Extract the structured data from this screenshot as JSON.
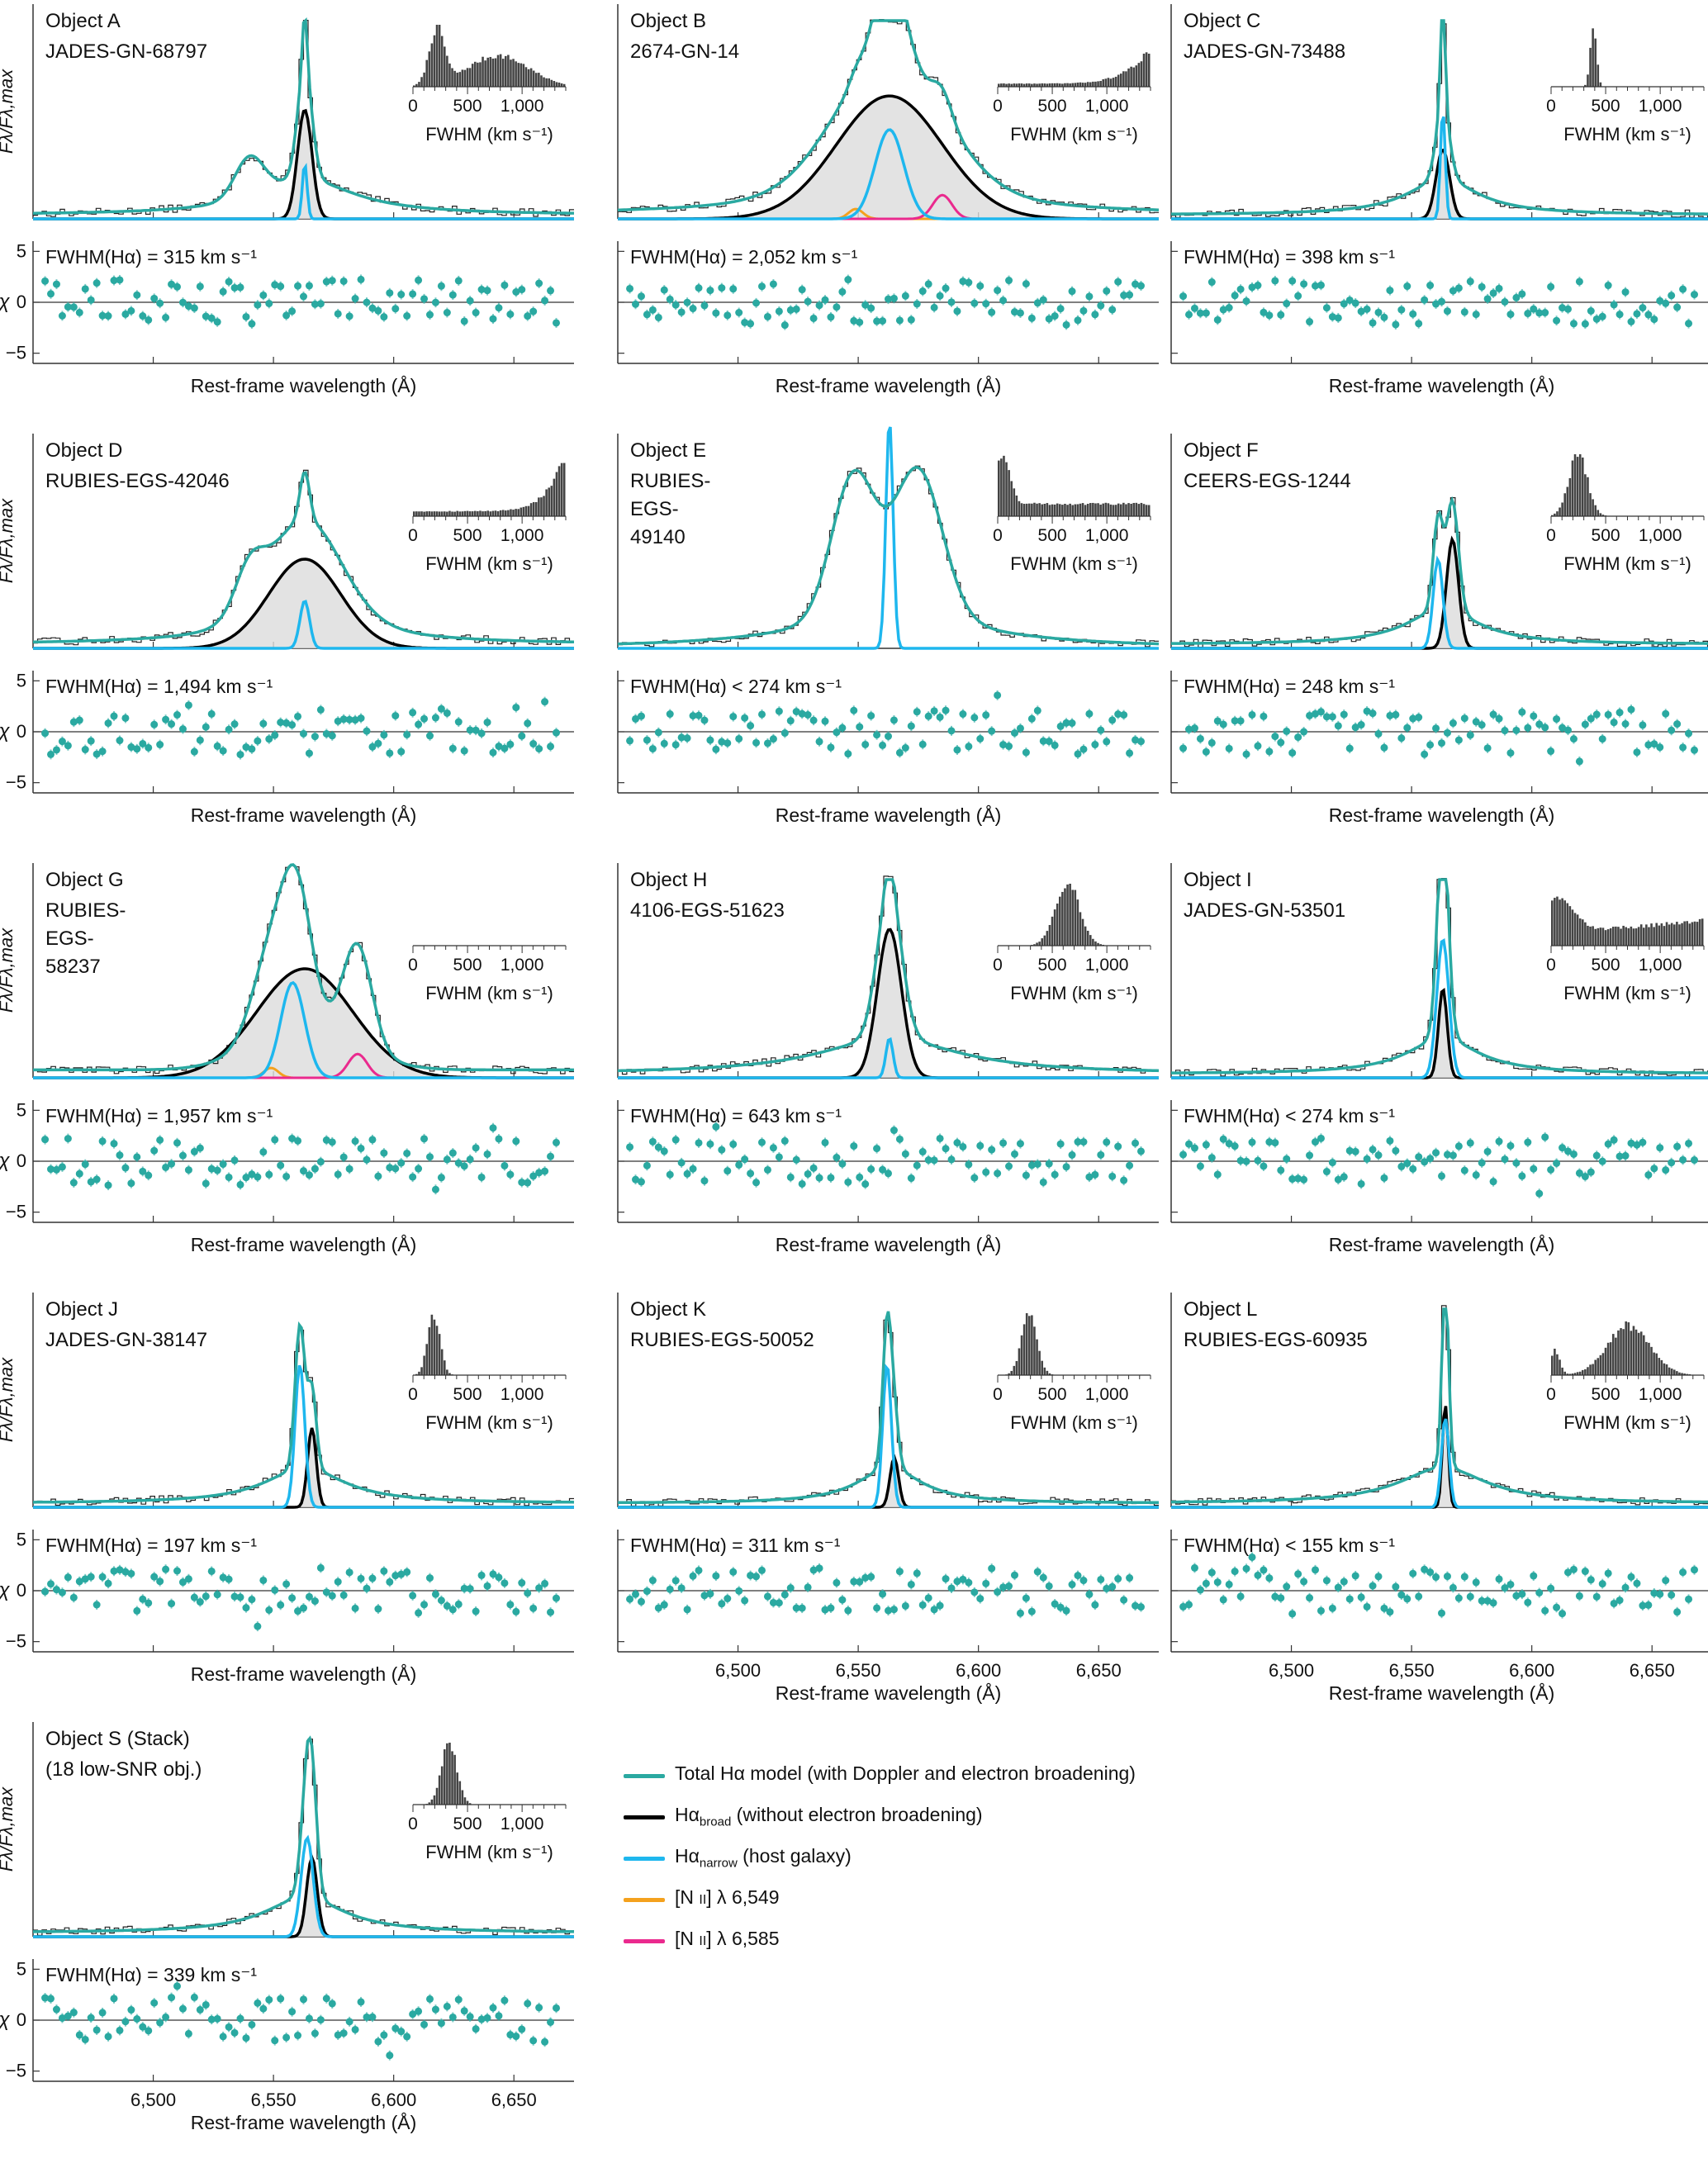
{
  "chart_data": {
    "type": "line",
    "title": "",
    "xlabel": "Rest-frame wavelength (Å)",
    "ylabel": "Fλ/Fλ,max",
    "residual_ylabel": "χ",
    "inset_xlabel": "FWHM (km s⁻¹)",
    "xlim": [
      6450,
      6675
    ],
    "residual_ylim": [
      -6,
      6
    ],
    "x_ticks": [
      6500,
      6550,
      6600,
      6650
    ],
    "x_tick_labels": [
      "6,500",
      "6,550",
      "6,600",
      "6,650"
    ],
    "residual_ticks": [
      5,
      0,
      -5
    ],
    "residual_tick_labels": [
      "5",
      "0",
      "−5"
    ],
    "inset_ticks": [
      0,
      500,
      1000
    ],
    "inset_tick_labels": [
      "0",
      "500",
      "1,000"
    ],
    "panels": [
      {
        "object": "Object A",
        "id_lines": [
          "JADES-GN-68797"
        ],
        "fwhm_label": "FWHM(Hα) = 315 km s⁻¹",
        "narrow_center": 6563,
        "narrow_sigma": 1.0,
        "narrow_amp": 0.28,
        "broad_center": 6563,
        "broad_sigma": 3.0,
        "broad_amp": 0.55,
        "wings": 25,
        "has_blue_bump": true,
        "nii": false,
        "inset": "A",
        "show_x_ticks": false
      },
      {
        "object": "Object B",
        "id_lines": [
          "2674-GN-14"
        ],
        "fwhm_label": "FWHM(Hα) = 2,052 km s⁻¹",
        "narrow_center": 6563,
        "narrow_sigma": 6.0,
        "narrow_amp": 0.45,
        "broad_center": 6563,
        "broad_sigma": 22.0,
        "broad_amp": 0.62,
        "wings": 45,
        "has_blue_bump": false,
        "nii": true,
        "inset": "B",
        "show_x_ticks": false
      },
      {
        "object": "Object C",
        "id_lines": [
          "JADES-GN-73488"
        ],
        "fwhm_label": "FWHM(Hα) = 398 km s⁻¹",
        "narrow_center": 6563,
        "narrow_sigma": 1.0,
        "narrow_amp": 0.55,
        "broad_center": 6563,
        "broad_sigma": 2.8,
        "broad_amp": 0.35,
        "wings": 18,
        "has_blue_bump": false,
        "nii": false,
        "inset": "C",
        "show_x_ticks": false
      },
      {
        "object": "Object D",
        "id_lines": [
          "RUBIES-EGS-42046"
        ],
        "fwhm_label": "FWHM(Hα) = 1,494 km s⁻¹",
        "narrow_center": 6563,
        "narrow_sigma": 2.0,
        "narrow_amp": 0.24,
        "broad_center": 6563,
        "broad_sigma": 15.0,
        "broad_amp": 0.45,
        "wings": 30,
        "has_blue_bump": true,
        "nii": false,
        "inset": "D",
        "show_x_ticks": false
      },
      {
        "object": "Object E",
        "id_lines": [
          "RUBIES-",
          "EGS-",
          "49140"
        ],
        "fwhm_label": "FWHM(Hα) < 274 km s⁻¹",
        "narrow_center": 6563,
        "narrow_sigma": 1.5,
        "narrow_amp": 1.15,
        "broad_center": 6563,
        "broad_sigma": 40.0,
        "broad_amp": 0.0,
        "wings": 40,
        "has_blue_bump": false,
        "nii": false,
        "inset": "E",
        "show_x_ticks": false
      },
      {
        "object": "Object F",
        "id_lines": [
          "CEERS-EGS-1244"
        ],
        "fwhm_label": "FWHM(Hα) = 248 km s⁻¹",
        "narrow_center": 6561,
        "narrow_sigma": 2.0,
        "narrow_amp": 0.45,
        "broad_center": 6567,
        "broad_sigma": 2.5,
        "broad_amp": 0.55,
        "wings": 18,
        "has_blue_bump": false,
        "nii": false,
        "inset": "F",
        "show_x_ticks": false
      },
      {
        "object": "Object G",
        "id_lines": [
          "RUBIES-",
          "EGS-",
          "58237"
        ],
        "fwhm_label": "FWHM(Hα) = 1,957 km s⁻¹",
        "narrow_center": 6558,
        "narrow_sigma": 5.0,
        "narrow_amp": 0.48,
        "broad_center": 6563,
        "broad_sigma": 20.0,
        "broad_amp": 0.55,
        "wings": 35,
        "has_blue_bump": false,
        "nii": true,
        "inset": "G",
        "show_x_ticks": false
      },
      {
        "object": "Object H",
        "id_lines": [
          "4106-EGS-51623"
        ],
        "fwhm_label": "FWHM(Hα) = 643 km s⁻¹",
        "narrow_center": 6563,
        "narrow_sigma": 1.5,
        "narrow_amp": 0.2,
        "broad_center": 6563,
        "broad_sigma": 5.0,
        "broad_amp": 0.75,
        "wings": 35,
        "has_blue_bump": false,
        "nii": false,
        "inset": "H",
        "show_x_ticks": false
      },
      {
        "object": "Object I",
        "id_lines": [
          "JADES-GN-53501"
        ],
        "fwhm_label": "FWHM(Hα) < 274 km s⁻¹",
        "narrow_center": 6563,
        "narrow_sigma": 2.5,
        "narrow_amp": 0.7,
        "broad_center": 6563,
        "broad_sigma": 1.8,
        "broad_amp": 0.45,
        "wings": 18,
        "has_blue_bump": false,
        "nii": false,
        "inset": "I",
        "show_x_ticks": false
      },
      {
        "object": "Object J",
        "id_lines": [
          "JADES-GN-38147"
        ],
        "fwhm_label": "FWHM(Hα) = 197 km s⁻¹",
        "narrow_center": 6561,
        "narrow_sigma": 2.0,
        "narrow_amp": 0.72,
        "broad_center": 6566,
        "broad_sigma": 1.8,
        "broad_amp": 0.4,
        "wings": 20,
        "has_blue_bump": false,
        "nii": false,
        "inset": "J",
        "show_x_ticks": false
      },
      {
        "object": "Object K",
        "id_lines": [
          "RUBIES-EGS-50052"
        ],
        "fwhm_label": "FWHM(Hα) = 311 km s⁻¹",
        "narrow_center": 6562,
        "narrow_sigma": 1.8,
        "narrow_amp": 0.72,
        "broad_center": 6565,
        "broad_sigma": 1.8,
        "broad_amp": 0.25,
        "wings": 16,
        "has_blue_bump": false,
        "nii": false,
        "inset": "K",
        "show_x_ticks": true
      },
      {
        "object": "Object L",
        "id_lines": [
          "RUBIES-EGS-60935"
        ],
        "fwhm_label": "FWHM(Hα) < 155 km s⁻¹",
        "narrow_center": 6564,
        "narrow_sigma": 1.6,
        "narrow_amp": 0.45,
        "broad_center": 6564,
        "broad_sigma": 1.2,
        "broad_amp": 0.52,
        "wings": 22,
        "has_blue_bump": false,
        "nii": false,
        "inset": "L",
        "show_x_ticks": true
      },
      {
        "object": "Object S (Stack)",
        "id_lines": [
          "(18 low-SNR obj.)"
        ],
        "fwhm_label": "FWHM(Hα) = 339 km s⁻¹",
        "narrow_center": 6564,
        "narrow_sigma": 2.5,
        "narrow_amp": 0.5,
        "broad_center": 6566,
        "broad_sigma": 2.2,
        "broad_amp": 0.4,
        "wings": 20,
        "has_blue_bump": false,
        "nii": false,
        "inset": "S",
        "show_x_ticks": true
      }
    ],
    "legend": [
      {
        "label": "Total Hα model (with Doppler and electron broadening)",
        "color": "#2aa9a1"
      },
      {
        "label": "Hα",
        "sub": "broad",
        "rest": " (without electron broadening)",
        "color": "#000000"
      },
      {
        "label": "Hα",
        "sub": "narrow",
        "rest": " (host galaxy)",
        "color": "#1eb7ee"
      },
      {
        "label": "[N ",
        "sc": "II",
        "rest": "] λ 6,549",
        "color": "#f4a11d"
      },
      {
        "label": "[N ",
        "sc": "II",
        "rest": "] λ 6,585",
        "color": "#ea2a8e"
      }
    ]
  }
}
